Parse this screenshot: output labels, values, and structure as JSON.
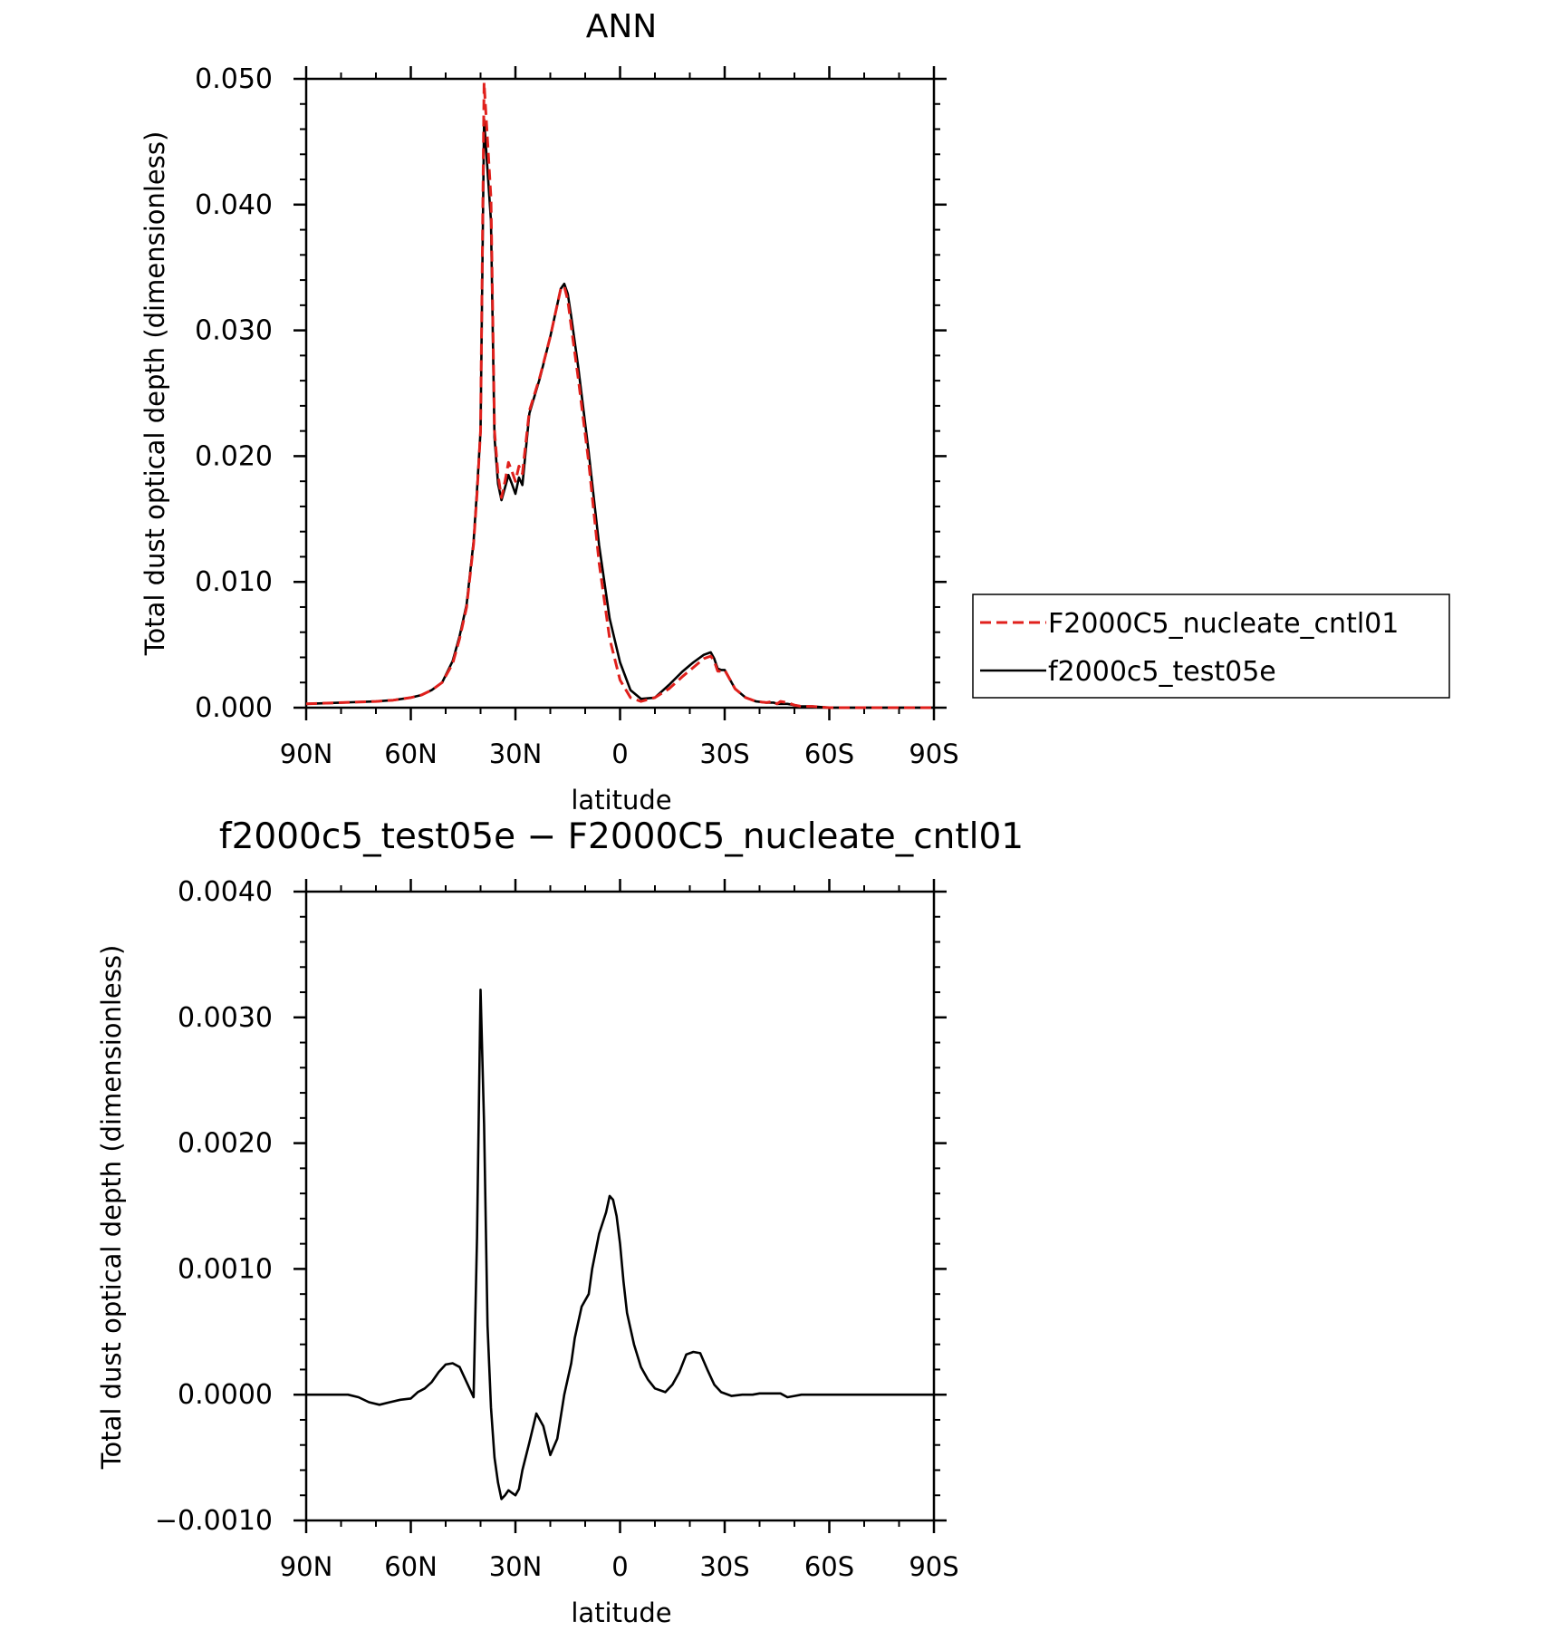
{
  "chart_data": [
    {
      "type": "line",
      "title": "ANN",
      "xlabel": "latitude",
      "ylabel": "Total dust optical depth (dimensionless)",
      "xlim": [
        -90,
        90
      ],
      "ylim": [
        0.0,
        0.05
      ],
      "x_ticks": [
        -90,
        -60,
        -30,
        0,
        30,
        60,
        90
      ],
      "x_tick_labels": [
        "90N",
        "60N",
        "30N",
        "0",
        "30S",
        "60S",
        "90S"
      ],
      "y_ticks": [
        0.0,
        0.01,
        0.02,
        0.03,
        0.04,
        0.05
      ],
      "y_tick_labels": [
        "0.000",
        "0.010",
        "0.020",
        "0.030",
        "0.040",
        "0.050"
      ],
      "legend": "outside-right",
      "series": [
        {
          "name": "F2000C5_nucleate_cntl01",
          "color": "#e0201c",
          "dash": "dashed",
          "x": [
            -90,
            -80,
            -70,
            -65,
            -60,
            -57,
            -54,
            -51,
            -48,
            -46,
            -44,
            -42,
            -41,
            -40,
            -39,
            -37,
            -36,
            -35,
            -34,
            -33,
            -32,
            -31,
            -30,
            -29,
            -28,
            -26,
            -23,
            -20,
            -17,
            -16,
            -15,
            -14,
            -12,
            -9,
            -6,
            -3,
            0,
            3,
            6,
            10,
            14,
            18,
            21,
            24,
            26,
            27,
            28,
            29,
            30,
            33,
            36,
            39,
            42,
            44,
            45,
            46,
            48,
            50,
            52,
            55,
            60,
            70,
            80,
            90
          ],
          "y": [
            0.0003,
            0.0004,
            0.0005,
            0.0006,
            0.0008,
            0.001,
            0.0014,
            0.002,
            0.0035,
            0.0055,
            0.008,
            0.013,
            0.017,
            0.022,
            0.0497,
            0.0405,
            0.022,
            0.0185,
            0.0167,
            0.018,
            0.0195,
            0.0188,
            0.018,
            0.0192,
            0.0186,
            0.0236,
            0.0263,
            0.0295,
            0.0333,
            0.0335,
            0.0324,
            0.0303,
            0.0262,
            0.0195,
            0.0115,
            0.0055,
            0.0022,
            0.0008,
            0.0005,
            0.0008,
            0.0015,
            0.0025,
            0.0032,
            0.0039,
            0.0041,
            0.0037,
            0.0029,
            0.0029,
            0.003,
            0.0015,
            0.0008,
            0.0005,
            0.0004,
            0.0005,
            0.0003,
            0.0005,
            0.0004,
            0.0002,
            0.0001,
            0.0001,
            0.0,
            0.0,
            0.0,
            0.0
          ]
        },
        {
          "name": "f2000c5_test05e",
          "color": "#000000",
          "dash": "solid",
          "x": [
            -90,
            -80,
            -70,
            -65,
            -60,
            -57,
            -54,
            -51,
            -48,
            -46,
            -44,
            -42,
            -41,
            -40,
            -39,
            -37,
            -36,
            -35,
            -34,
            -33,
            -32,
            -31,
            -30,
            -29,
            -28,
            -26,
            -23,
            -20,
            -17,
            -16,
            -15,
            -14,
            -12,
            -9,
            -6,
            -3,
            0,
            3,
            6,
            10,
            14,
            18,
            21,
            24,
            26,
            27,
            28,
            29,
            30,
            33,
            36,
            39,
            42,
            44,
            45,
            46,
            48,
            50,
            52,
            55,
            60,
            70,
            80,
            90
          ],
          "y": [
            0.0003,
            0.0004,
            0.0005,
            0.0006,
            0.0008,
            0.001,
            0.0014,
            0.002,
            0.0037,
            0.0057,
            0.0082,
            0.0132,
            0.0173,
            0.022,
            0.0468,
            0.0387,
            0.0215,
            0.0178,
            0.0165,
            0.0175,
            0.0185,
            0.0178,
            0.017,
            0.0183,
            0.0177,
            0.0234,
            0.0262,
            0.0295,
            0.0333,
            0.0337,
            0.0329,
            0.0311,
            0.0271,
            0.0203,
            0.0129,
            0.0071,
            0.0036,
            0.0014,
            0.0007,
            0.0008,
            0.0018,
            0.0029,
            0.0036,
            0.0042,
            0.0044,
            0.0039,
            0.0031,
            0.003,
            0.003,
            0.0015,
            0.0008,
            0.0005,
            0.0004,
            0.0004,
            0.0003,
            0.0003,
            0.0003,
            0.0002,
            0.0001,
            0.0001,
            0.0,
            0.0,
            0.0,
            0.0
          ]
        }
      ]
    },
    {
      "type": "line",
      "title": "f2000c5_test05e − F2000C5_nucleate_cntl01",
      "xlabel": "latitude",
      "ylabel": "Total dust optical depth (dimensionless)",
      "xlim": [
        -90,
        90
      ],
      "ylim": [
        -0.001,
        0.004
      ],
      "x_ticks": [
        -90,
        -60,
        -30,
        0,
        30,
        60,
        90
      ],
      "x_tick_labels": [
        "90N",
        "60N",
        "30N",
        "0",
        "30S",
        "60S",
        "90S"
      ],
      "y_ticks": [
        -0.001,
        0.0,
        0.001,
        0.002,
        0.003,
        0.004
      ],
      "y_tick_labels": [
        "−0.0010",
        "0.0000",
        "0.0010",
        "0.0020",
        "0.0030",
        "0.0040"
      ],
      "series": [
        {
          "color": "#000000",
          "dash": "solid",
          "x": [
            -90,
            -87,
            -84,
            -81,
            -78,
            -75,
            -72,
            -69,
            -66,
            -63,
            -60,
            -58,
            -56,
            -54,
            -52,
            -50,
            -48,
            -46,
            -44,
            -42,
            -41,
            -40,
            -39,
            -38,
            -37,
            -36,
            -35,
            -34,
            -33,
            -32,
            -31,
            -30,
            -29,
            -28,
            -26,
            -24,
            -22,
            -20,
            -18,
            -16,
            -14,
            -13,
            -11,
            -9,
            -8,
            -6,
            -4,
            -3,
            -2,
            -1,
            0,
            1,
            2,
            4,
            6,
            8,
            10,
            13,
            15,
            17,
            19,
            21,
            23,
            25,
            27,
            29,
            32,
            35,
            38,
            40,
            44,
            46,
            48,
            50,
            52,
            55,
            60,
            68,
            75,
            85,
            90
          ],
          "y": [
            0.0,
            0.0,
            0.0,
            0.0,
            0.0,
            -2e-05,
            -6e-05,
            -8e-05,
            -6e-05,
            -4e-05,
            -3e-05,
            2e-05,
            5e-05,
            0.0001,
            0.00018,
            0.00024,
            0.00025,
            0.00022,
            0.0001,
            -2e-05,
            0.00125,
            0.00322,
            0.00215,
            0.00055,
            -0.0001,
            -0.0005,
            -0.0007,
            -0.00083,
            -0.0008,
            -0.00076,
            -0.00078,
            -0.0008,
            -0.00075,
            -0.0006,
            -0.00038,
            -0.00015,
            -0.00025,
            -0.00048,
            -0.00035,
            0.0,
            0.00025,
            0.00045,
            0.0007,
            0.0008,
            0.001,
            0.00128,
            0.00145,
            0.00158,
            0.00155,
            0.00142,
            0.0012,
            0.0009,
            0.00065,
            0.0004,
            0.00022,
            0.00012,
            5e-05,
            2e-05,
            8e-05,
            0.00018,
            0.00032,
            0.00034,
            0.00033,
            0.0002,
            8e-05,
            2e-05,
            -1e-05,
            0.0,
            0.0,
            1e-05,
            1e-05,
            1e-05,
            -2e-05,
            -1e-05,
            0.0,
            0.0,
            0.0,
            0.0,
            0.0,
            0.0,
            0.0
          ]
        }
      ]
    }
  ]
}
